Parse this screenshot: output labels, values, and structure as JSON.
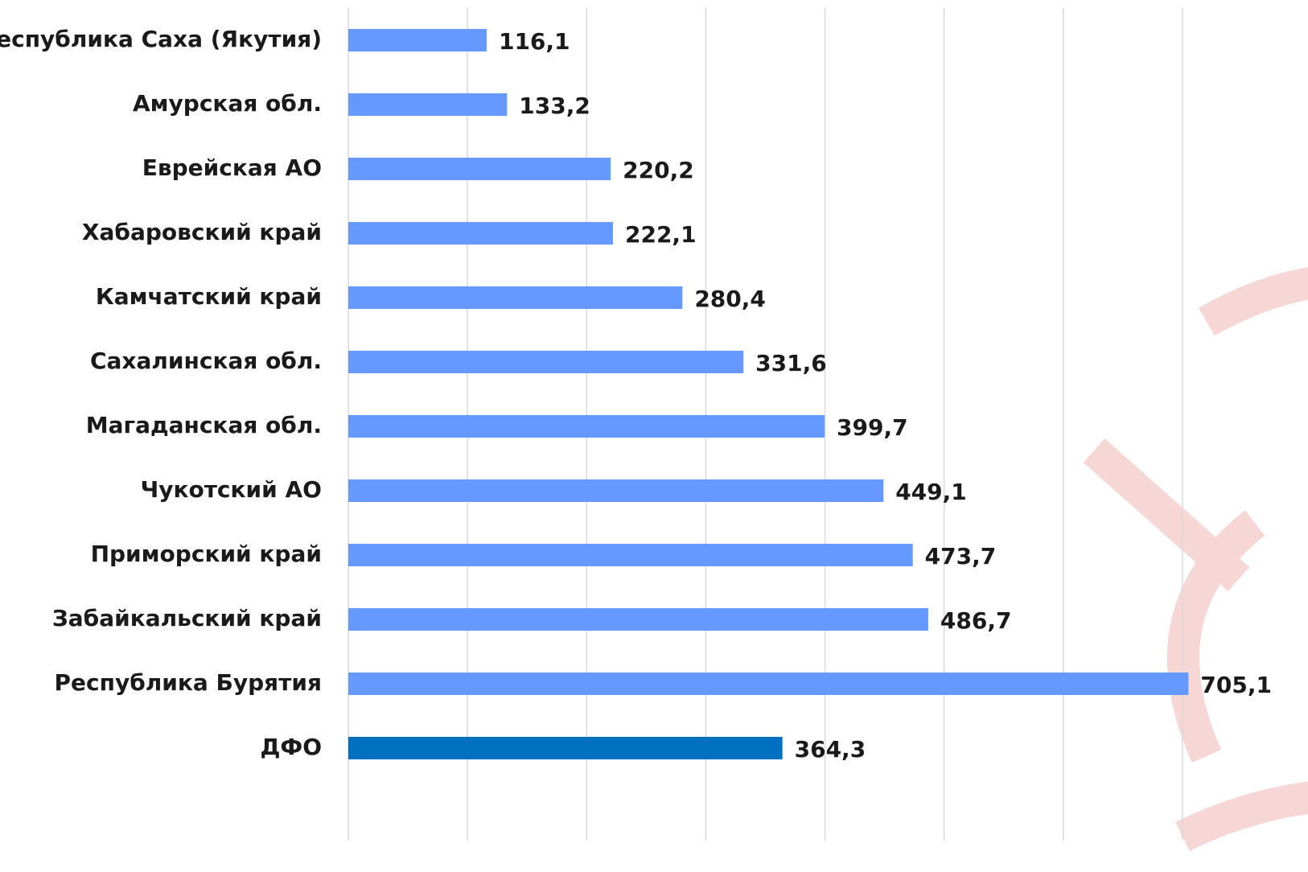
{
  "chart_data": {
    "type": "barh",
    "categories": [
      "Республика Саха (Якутия)",
      "Амурская обл.",
      "Еврейская АО",
      "Хабаровский край",
      "Камчатский край",
      "Сахалинская обл.",
      "Магаданская обл.",
      "Чукотский АО",
      "Приморский край",
      "Забайкальский край",
      "Республика Бурятия",
      "ДФО"
    ],
    "values": [
      116.1,
      133.2,
      220.2,
      222.1,
      280.4,
      331.6,
      399.7,
      449.1,
      473.7,
      486.7,
      705.1,
      364.3
    ],
    "value_labels": [
      "116,1",
      "133,2",
      "220,2",
      "222,1",
      "280,4",
      "331,6",
      "399,7",
      "449,1",
      "473,7",
      "486,7",
      "705,1",
      "364,3"
    ],
    "colors": [
      "#6699ff",
      "#6699ff",
      "#6699ff",
      "#6699ff",
      "#6699ff",
      "#6699ff",
      "#6699ff",
      "#6699ff",
      "#6699ff",
      "#6699ff",
      "#6699ff",
      "#0070c0"
    ],
    "xlim": [
      0,
      800
    ],
    "xticks": [
      0,
      100,
      200,
      300,
      400,
      500,
      600,
      700
    ],
    "grid": true
  }
}
